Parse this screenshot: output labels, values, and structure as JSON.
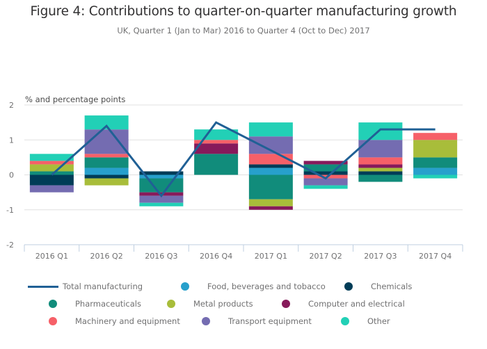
{
  "title": "Figure 4: Contributions to quarter-on-quarter manufacturing growth",
  "subtitle": "UK, Quarter 1 (Jan to Mar) 2016 to Quarter 4 (Oct to Dec) 2017",
  "legend": [
    {
      "name": "Total manufacturing",
      "color": "#206095",
      "kind": "line"
    },
    {
      "name": "Food, beverages and tobacco",
      "color": "#27a0cc",
      "kind": "dot"
    },
    {
      "name": "Chemicals",
      "color": "#003c57",
      "kind": "dot"
    },
    {
      "name": "Pharmaceuticals",
      "color": "#118c7b",
      "kind": "dot"
    },
    {
      "name": "Metal products",
      "color": "#a8bd3a",
      "kind": "dot"
    },
    {
      "name": "Computer and electrical",
      "color": "#871a5b",
      "kind": "dot"
    },
    {
      "name": "Machinery and equipment",
      "color": "#f66068",
      "kind": "dot"
    },
    {
      "name": "Transport equipment",
      "color": "#746cb1",
      "kind": "dot"
    },
    {
      "name": "Other",
      "color": "#22d0b6",
      "kind": "dot"
    }
  ],
  "chart_data": {
    "type": "bar",
    "stacked": true,
    "title": "Figure 4: Contributions to quarter-on-quarter manufacturing growth",
    "subtitle": "UK, Quarter 1 (Jan to Mar) 2016 to Quarter 4 (Oct to Dec) 2017",
    "xlabel": "",
    "ylabel": "% and percentage points",
    "ylim": [
      -2,
      2
    ],
    "yticks": [
      2,
      1,
      0,
      -1,
      -2
    ],
    "grid": true,
    "legend_position": "bottom",
    "categories": [
      "2016 Q1",
      "2016 Q2",
      "2016 Q3",
      "2016 Q4",
      "2017 Q1",
      "2017 Q2",
      "2017 Q3",
      "2017 Q4"
    ],
    "series": [
      {
        "name": "Food, beverages and tobacco",
        "color": "#27a0cc",
        "values": [
          0.0,
          0.2,
          -0.1,
          0.0,
          0.2,
          0.0,
          0.0,
          0.2
        ]
      },
      {
        "name": "Chemicals",
        "color": "#003c57",
        "values": [
          -0.3,
          -0.1,
          0.1,
          0.0,
          0.1,
          0.1,
          0.1,
          0.0
        ]
      },
      {
        "name": "Pharmaceuticals",
        "color": "#118c7b",
        "values": [
          0.1,
          0.3,
          -0.4,
          0.6,
          -0.7,
          0.2,
          -0.2,
          0.3
        ]
      },
      {
        "name": "Metal products",
        "color": "#a8bd3a",
        "values": [
          0.2,
          -0.2,
          0.0,
          0.0,
          -0.2,
          0.0,
          0.1,
          0.5
        ]
      },
      {
        "name": "Computer and electrical",
        "color": "#871a5b",
        "values": [
          0.0,
          0.0,
          -0.1,
          0.3,
          -0.1,
          0.1,
          0.1,
          0.0
        ]
      },
      {
        "name": "Machinery and equipment",
        "color": "#f66068",
        "values": [
          0.1,
          0.1,
          0.0,
          0.1,
          0.3,
          -0.1,
          0.2,
          0.2
        ]
      },
      {
        "name": "Transport equipment",
        "color": "#746cb1",
        "values": [
          -0.2,
          0.7,
          -0.2,
          0.0,
          0.5,
          -0.2,
          0.5,
          0.0
        ]
      },
      {
        "name": "Other",
        "color": "#22d0b6",
        "values": [
          0.2,
          0.4,
          -0.1,
          0.3,
          0.4,
          -0.1,
          0.5,
          -0.1
        ]
      }
    ],
    "line_series": {
      "name": "Total manufacturing",
      "color": "#206095",
      "values": [
        0.0,
        1.4,
        -0.6,
        1.5,
        0.7,
        -0.1,
        1.3,
        1.3
      ]
    }
  }
}
